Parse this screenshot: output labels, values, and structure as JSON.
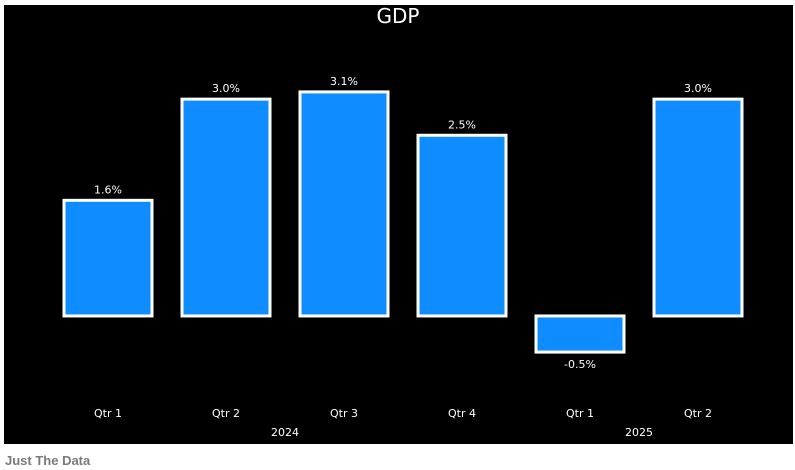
{
  "chart_data": {
    "type": "bar",
    "title": "GDP",
    "categories": [
      "Qtr 1",
      "Qtr 2",
      "Qtr 3",
      "Qtr 4",
      "Qtr 1",
      "Qtr 2"
    ],
    "groups": [
      {
        "label": "2024",
        "count": 4
      },
      {
        "label": "2025",
        "count": 2
      }
    ],
    "values": [
      1.6,
      3.0,
      3.1,
      2.5,
      -0.5,
      3.0
    ],
    "value_labels": [
      "1.6%",
      "3.0%",
      "3.1%",
      "2.5%",
      "-0.5%",
      "3.0%"
    ],
    "unit": "%",
    "ylim": [
      -0.9,
      3.5
    ],
    "grid": false,
    "colors": {
      "background": "#000000",
      "bar_fill": "#0f8cff",
      "bar_stroke": "#ffffff",
      "text": "#ffffff"
    }
  },
  "caption": "Just The Data"
}
